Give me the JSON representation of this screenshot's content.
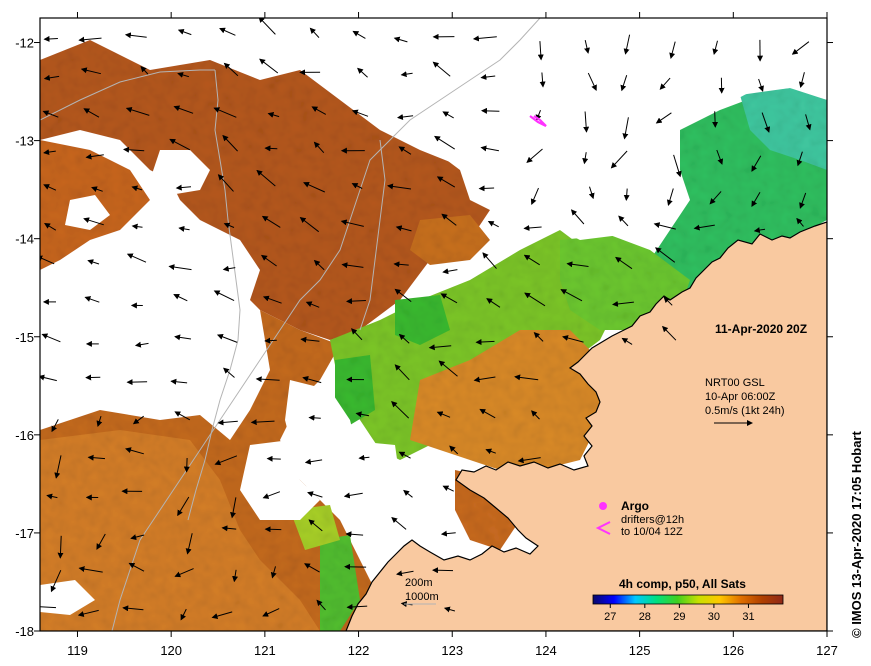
{
  "map": {
    "date_label": "11-Apr-2020 20Z",
    "credit": "©  IMOS 13-Apr-2020 17:05 Hobart",
    "x_ticks": [
      "119",
      "120",
      "121",
      "122",
      "123",
      "124",
      "125",
      "126",
      "127"
    ],
    "y_ticks": [
      "-12",
      "-13",
      "-14",
      "-15",
      "-16",
      "-17",
      "-18"
    ],
    "x_range": [
      118.6,
      127
    ],
    "y_range": [
      -18,
      -11.75
    ],
    "colors": {
      "land": "#f9c9a0",
      "no_data": "#ffffff",
      "coastline": "#000000",
      "contours": "#b4b4b4",
      "argo_marker": "#ff33ff",
      "drifter_track": "#ff33ff"
    }
  },
  "currents_legend": {
    "line1": "NRT00 GSL",
    "line2": "10-Apr 06:00Z",
    "line3": "0.5m/s (1kt 24h)"
  },
  "markers_legend": {
    "argo_label": "Argo",
    "drifters_line1": "drifters@12h",
    "drifters_line2": "to 10/04 12Z"
  },
  "contour_legend": {
    "line1": "200m",
    "line2": "1000m"
  },
  "colorbar": {
    "title": "4h comp, p50, All Sats",
    "ticks": [
      "27",
      "28",
      "29",
      "30",
      "31"
    ],
    "range": [
      26.5,
      32
    ],
    "stops": [
      "#08086b",
      "#0000ff",
      "#00c8ff",
      "#00e080",
      "#40d020",
      "#c8e000",
      "#ffc800",
      "#e07000",
      "#b04000",
      "#902818"
    ]
  }
}
